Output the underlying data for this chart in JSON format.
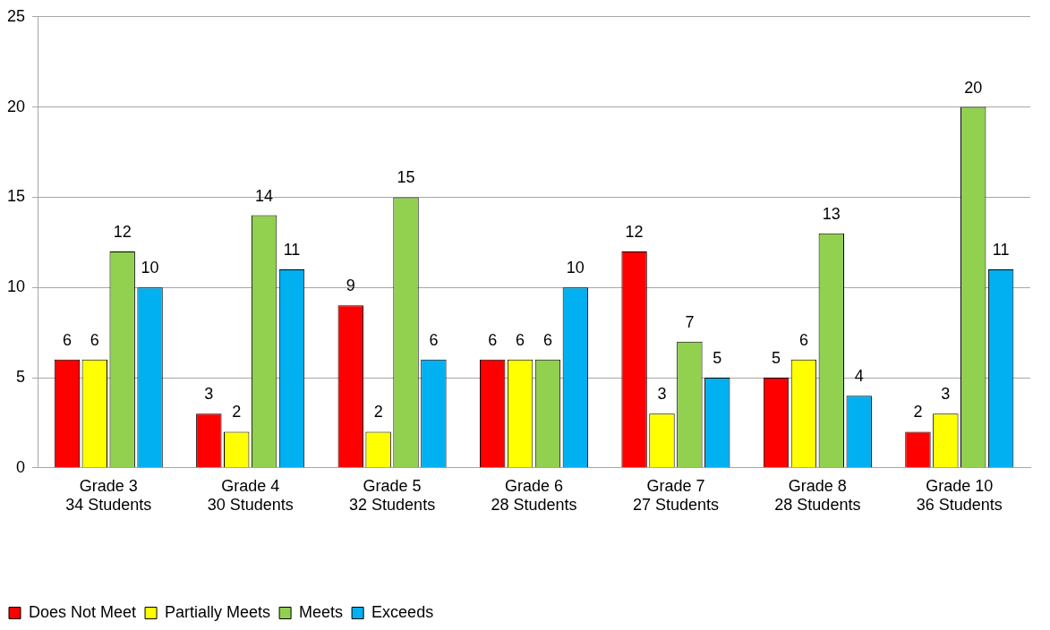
{
  "chart_data": {
    "type": "bar",
    "categories": [
      "Grade 3\n34 Students",
      "Grade 4\n30 Students",
      "Grade 5\n32 Students",
      "Grade 6\n28 Students",
      "Grade 7\n27 Students",
      "Grade 8\n28 Students",
      "Grade 10\n36 Students"
    ],
    "series": [
      {
        "name": "Does Not Meet",
        "color": "#ff0000",
        "values": [
          6,
          3,
          9,
          6,
          12,
          5,
          2
        ]
      },
      {
        "name": "Partially Meets",
        "color": "#ffff00",
        "values": [
          6,
          2,
          2,
          6,
          3,
          6,
          3
        ]
      },
      {
        "name": "Meets",
        "color": "#92d050",
        "values": [
          12,
          14,
          15,
          6,
          7,
          13,
          20
        ]
      },
      {
        "name": "Exceeds",
        "color": "#00b0f0",
        "values": [
          10,
          11,
          6,
          10,
          5,
          4,
          11
        ]
      }
    ],
    "ylim": [
      0,
      25
    ],
    "yticks": [
      0,
      5,
      10,
      15,
      20,
      25
    ],
    "grid": "y",
    "legend": "bottom left",
    "data_labels": true
  }
}
